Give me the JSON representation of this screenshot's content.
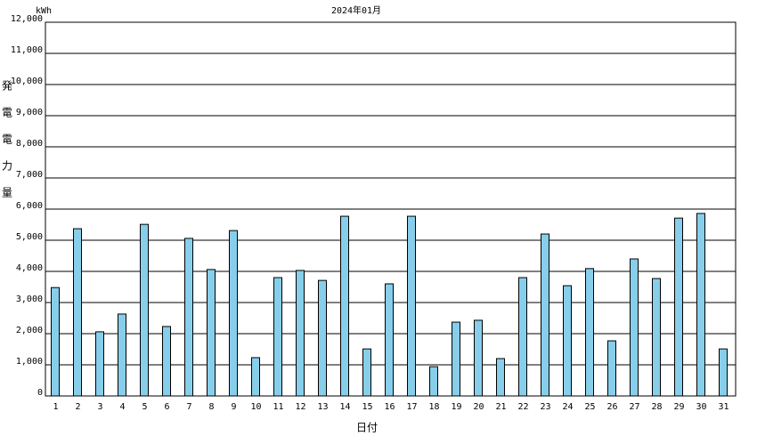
{
  "chart_data": {
    "type": "bar",
    "title": "2024年01月",
    "y_unit": "kWh",
    "y_label": "発電電力量",
    "x_label": "日付",
    "categories": [
      "1",
      "2",
      "3",
      "4",
      "5",
      "6",
      "7",
      "8",
      "9",
      "10",
      "11",
      "12",
      "13",
      "14",
      "15",
      "16",
      "17",
      "18",
      "19",
      "20",
      "21",
      "22",
      "23",
      "24",
      "25",
      "26",
      "27",
      "28",
      "29",
      "30",
      "31"
    ],
    "values": [
      3480,
      5370,
      2060,
      2630,
      5510,
      2230,
      5060,
      4060,
      5310,
      1230,
      3800,
      4030,
      3710,
      5770,
      1510,
      3600,
      5770,
      940,
      2370,
      2430,
      1200,
      3800,
      5200,
      3540,
      4090,
      1770,
      4400,
      3770,
      5710,
      5860,
      1510
    ],
    "color": "#87ceeb",
    "ylim": [
      0,
      12000
    ],
    "yticks": [
      0,
      {
        "value": 1000,
        "label": "1,000"
      },
      {
        "value": 2000,
        "label": "2,000"
      },
      {
        "value": 3000,
        "label": "3,000"
      },
      {
        "value": 4000,
        "label": "4,000"
      },
      {
        "value": 5000,
        "label": "5,000"
      },
      {
        "value": 6000,
        "label": "6,000"
      },
      {
        "value": 7000,
        "label": "7,000"
      },
      {
        "value": 8000,
        "label": "8,000"
      },
      {
        "value": 9000,
        "label": "9,000"
      },
      {
        "value": 10000,
        "label": "10,000"
      },
      {
        "value": 11000,
        "label": "11,000"
      },
      {
        "value": 12000,
        "label": "12,000"
      }
    ],
    "grid": true
  }
}
